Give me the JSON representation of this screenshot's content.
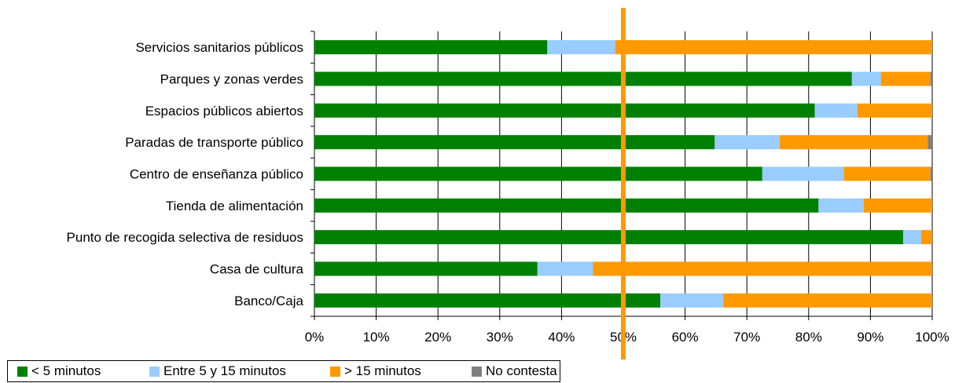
{
  "chart_data": {
    "type": "bar",
    "orientation": "horizontal",
    "stacked": "percent",
    "categories": [
      "Servicios sanitarios públicos",
      "Parques y zonas verdes",
      "Espacios públicos abiertos",
      "Paradas de transporte público",
      "Centro de enseñanza público",
      "Tienda de alimentación",
      "Punto de recogida selectiva de residuos",
      "Casa de cultura",
      "Banco/Caja"
    ],
    "series": [
      {
        "name": "< 5 minutos",
        "color": "#008000",
        "values": [
          37.7,
          87.0,
          81.0,
          64.8,
          72.5,
          81.6,
          95.3,
          36.1,
          56.0
        ]
      },
      {
        "name": "Entre 5 y 15 minutos",
        "color": "#99ccff",
        "values": [
          11.0,
          4.7,
          6.9,
          10.5,
          13.2,
          7.3,
          2.9,
          9.0,
          10.2
        ]
      },
      {
        "name": "> 15 minutos",
        "color": "#ff9900",
        "values": [
          51.3,
          8.0,
          12.1,
          24.0,
          14.0,
          11.1,
          1.8,
          54.9,
          33.8
        ]
      },
      {
        "name": "No contesta",
        "color": "#808080",
        "values": [
          0.0,
          0.3,
          0.0,
          0.7,
          0.3,
          0.0,
          0.0,
          0.0,
          0.0
        ]
      }
    ],
    "xticks": [
      "0%",
      "10%",
      "20%",
      "30%",
      "40%",
      "50%",
      "60%",
      "70%",
      "80%",
      "90%",
      "100%"
    ],
    "xlim": [
      0,
      100
    ],
    "grid": true,
    "reference_line": {
      "value": 50,
      "color": "#ff9900"
    },
    "legend_position": "bottom-left"
  }
}
